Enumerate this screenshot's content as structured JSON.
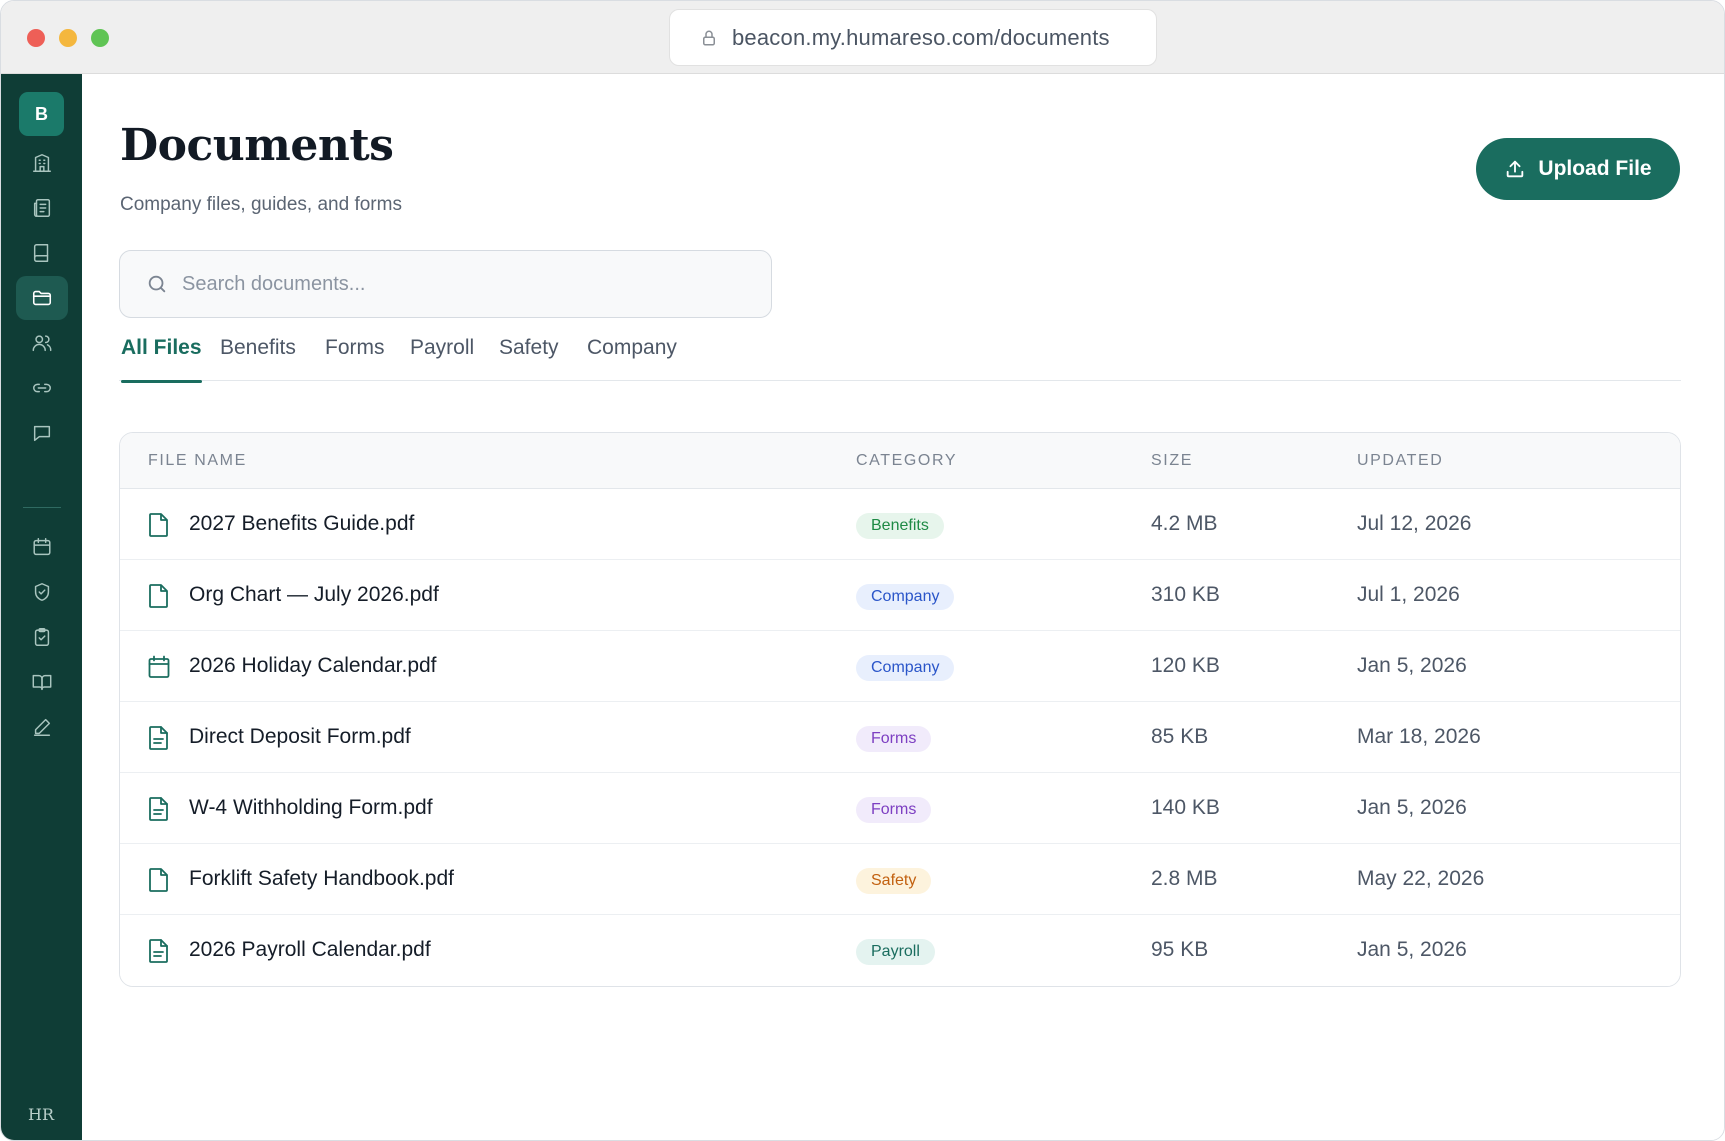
{
  "browser": {
    "url": "beacon.my.humareso.com/documents"
  },
  "sidebar": {
    "logo": "B",
    "footer_mark": "HR",
    "items": [
      {
        "icon": "building-icon"
      },
      {
        "icon": "newspaper-icon"
      },
      {
        "icon": "book-icon"
      },
      {
        "icon": "folder-icon",
        "active": true
      },
      {
        "icon": "users-icon"
      },
      {
        "icon": "link-icon"
      },
      {
        "icon": "chat-icon"
      },
      {
        "icon": "calendar-icon"
      },
      {
        "icon": "shield-check-icon"
      },
      {
        "icon": "clipboard-check-icon"
      },
      {
        "icon": "open-book-icon"
      },
      {
        "icon": "pen-icon"
      }
    ]
  },
  "header": {
    "title": "Documents",
    "subtitle": "Company files, guides, and forms",
    "upload_label": "Upload File"
  },
  "search": {
    "placeholder": "Search documents...",
    "value": ""
  },
  "tabs": [
    {
      "label": "All Files",
      "active": true
    },
    {
      "label": "Benefits"
    },
    {
      "label": "Forms"
    },
    {
      "label": "Payroll"
    },
    {
      "label": "Safety"
    },
    {
      "label": "Company"
    }
  ],
  "table": {
    "columns": [
      "FILE NAME",
      "CATEGORY",
      "SIZE",
      "UPDATED"
    ],
    "rows": [
      {
        "name": "2027 Benefits Guide.pdf",
        "icon": "document-icon",
        "category": "Benefits",
        "size": "4.2 MB",
        "updated": "Jul 12, 2026"
      },
      {
        "name": "Org Chart — July 2026.pdf",
        "icon": "document-icon",
        "category": "Company",
        "size": "310 KB",
        "updated": "Jul 1, 2026"
      },
      {
        "name": "2026 Holiday Calendar.pdf",
        "icon": "calendar-icon",
        "category": "Company",
        "size": "120 KB",
        "updated": "Jan 5, 2026"
      },
      {
        "name": "Direct Deposit Form.pdf",
        "icon": "document-text-icon",
        "category": "Forms",
        "size": "85 KB",
        "updated": "Mar 18, 2026"
      },
      {
        "name": "W-4 Withholding Form.pdf",
        "icon": "document-text-icon",
        "category": "Forms",
        "size": "140 KB",
        "updated": "Jan 5, 2026"
      },
      {
        "name": "Forklift Safety Handbook.pdf",
        "icon": "document-icon",
        "category": "Safety",
        "size": "2.8 MB",
        "updated": "May 22, 2026"
      },
      {
        "name": "2026 Payroll Calendar.pdf",
        "icon": "document-text-icon",
        "category": "Payroll",
        "size": "95 KB",
        "updated": "Jan 5, 2026"
      }
    ]
  },
  "colors": {
    "sidebar": "#0f3d36",
    "accent": "#1a6d5f",
    "benefits_badge_bg": "#e7f5ec",
    "benefits_badge_fg": "#1e8a45",
    "company_badge_bg": "#e8effd",
    "company_badge_fg": "#2a55c9",
    "forms_badge_bg": "#f1ebfb",
    "forms_badge_fg": "#7d3fc2",
    "safety_badge_bg": "#fdf3dd",
    "safety_badge_fg": "#c2600f",
    "payroll_badge_bg": "#e4f3f0",
    "payroll_badge_fg": "#1a6d5f"
  }
}
